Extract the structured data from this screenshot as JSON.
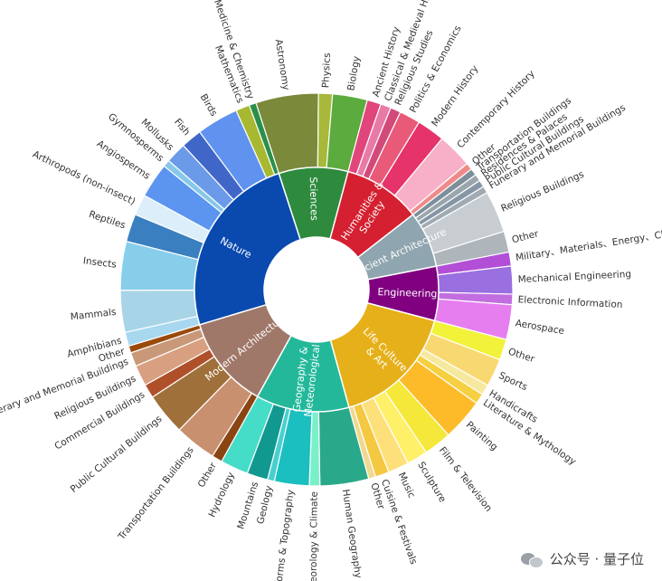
{
  "chart_data": {
    "type": "sunburst",
    "title": "",
    "categories": [
      {
        "name": "Sciences",
        "color": "#2e8b3e",
        "children": [
          {
            "name": "Astronomy",
            "value": 9,
            "color": "#7a8a3a"
          },
          {
            "name": "Physics",
            "value": 2,
            "color": "#a8b83a"
          },
          {
            "name": "Biology",
            "value": 5,
            "color": "#5cab3e"
          }
        ]
      },
      {
        "name": "Humanities & Society",
        "color": "#d42030",
        "children": [
          {
            "name": "Ancient History",
            "value": 2,
            "color": "#e0457b"
          },
          {
            "name": "Classical & Medieval History",
            "value": 1.5,
            "color": "#e87aa6"
          },
          {
            "name": "Religious Studies",
            "value": 1.5,
            "color": "#d24a7a"
          },
          {
            "name": "Politics & Economics",
            "value": 3,
            "color": "#e85a78"
          },
          {
            "name": "Modern History",
            "value": 4,
            "color": "#e6336a"
          },
          {
            "name": "Contemporary History",
            "value": 5,
            "color": "#f7b0c8"
          },
          {
            "name": "Other",
            "value": 1,
            "color": "#f08a8a"
          }
        ]
      },
      {
        "name": "Ancient Architecture",
        "color": "#8fa5b0",
        "children": [
          {
            "name": "Transportation Buildings",
            "value": 1,
            "color": "#7d8f9a"
          },
          {
            "name": "Residences & Palaces",
            "value": 1,
            "color": "#9aa5ad"
          },
          {
            "name": "Public Cultural Buildings",
            "value": 1,
            "color": "#8696a6"
          },
          {
            "name": "Funerary and Memorial Buildings",
            "value": 1,
            "color": "#a0aab3"
          },
          {
            "name": "Religious Buildings",
            "value": 6,
            "color": "#c8cdd2"
          },
          {
            "name": "Other",
            "value": 3,
            "color": "#aeb5bb"
          }
        ]
      },
      {
        "name": "Engineering",
        "color": "#800080",
        "children": [
          {
            "name": "Military、Materials、Energy、Chemical Engineering",
            "value": 2,
            "color": "#b24fd6"
          },
          {
            "name": "Mechanical Engineering",
            "value": 4,
            "color": "#9a6fe0"
          },
          {
            "name": "Electronic Information",
            "value": 1.5,
            "color": "#c26ee0"
          },
          {
            "name": "Aerospace",
            "value": 5,
            "color": "#e67ef0"
          }
        ]
      },
      {
        "name": "Life Culture & Art",
        "color": "#e6b01a",
        "children": [
          {
            "name": "Other",
            "value": 3,
            "color": "#f2f23a"
          },
          {
            "name": "Sports",
            "value": 4,
            "color": "#f8d870"
          },
          {
            "name": "Handicrafts",
            "value": 1.5,
            "color": "#f7e8a0"
          },
          {
            "name": "Literature & Mythology",
            "value": 1.5,
            "color": "#f5d040"
          },
          {
            "name": "Painting",
            "value": 6,
            "color": "#fdbb2a"
          },
          {
            "name": "Film & Television",
            "value": 4,
            "color": "#f5e83a"
          },
          {
            "name": "Sculpture",
            "value": 3,
            "color": "#fff06a"
          },
          {
            "name": "Music",
            "value": 3,
            "color": "#fde07a"
          },
          {
            "name": "Cuisine & Festivals",
            "value": 2,
            "color": "#f5c842"
          },
          {
            "name": "Other",
            "value": 1,
            "color": "#f0d890"
          }
        ]
      },
      {
        "name": "Geography & Meteorological",
        "color": "#23b89a",
        "children": [
          {
            "name": "Human Geography",
            "value": 7,
            "color": "#2aa88a"
          },
          {
            "name": "Meteorology & Climate",
            "value": 1.5,
            "color": "#7af0c8"
          },
          {
            "name": "Landforms & Topography",
            "value": 5,
            "color": "#1bbfbf"
          },
          {
            "name": "Geology",
            "value": 1,
            "color": "#48cfcf"
          },
          {
            "name": "Mountains",
            "value": 3,
            "color": "#12998f"
          },
          {
            "name": "Hydrology",
            "value": 4,
            "color": "#45dcc8"
          }
        ]
      },
      {
        "name": "Modern Architecture",
        "color": "#a0786a",
        "children": [
          {
            "name": "Other",
            "value": 1.5,
            "color": "#8b4512"
          },
          {
            "name": "Transportation Buildings",
            "value": 6,
            "color": "#c99070"
          },
          {
            "name": "Public Cultural Buildings",
            "value": 6,
            "color": "#a0703a"
          },
          {
            "name": "Commercial Buildings",
            "value": 2,
            "color": "#b0502a"
          },
          {
            "name": "Religious Buildings",
            "value": 3,
            "color": "#d8a080"
          },
          {
            "name": "Funerary and Memorial Buildings",
            "value": 2,
            "color": "#c89878"
          },
          {
            "name": "Other",
            "value": 1,
            "color": "#9a4a0a"
          }
        ]
      },
      {
        "name": "Nature",
        "color": "#0a4aaf",
        "children": [
          {
            "name": "Amphibians",
            "value": 2,
            "color": "#a8d8f0"
          },
          {
            "name": "Mammals",
            "value": 6,
            "color": "#a8d4e8"
          },
          {
            "name": "Insects",
            "value": 7,
            "color": "#87ceeb"
          },
          {
            "name": "Reptiles",
            "value": 4,
            "color": "#3a7fbf"
          },
          {
            "name": "Arthropods (non-insect)",
            "value": 3,
            "color": "#dbeefa"
          },
          {
            "name": "Angiosperms",
            "value": 5,
            "color": "#5b95f0"
          },
          {
            "name": "Gymnosperms",
            "value": 1,
            "color": "#87c8e8"
          },
          {
            "name": "Mollusks",
            "value": 3,
            "color": "#6b9be8"
          },
          {
            "name": "Fish",
            "value": 3,
            "color": "#4066c8"
          },
          {
            "name": "Birds",
            "value": 6,
            "color": "#5f93ef"
          },
          {
            "name": "Mathematics",
            "value": 2,
            "color": "#a8b830"
          },
          {
            "name": "Medicine & Chemistry",
            "value": 1,
            "color": "#2a8f4a"
          }
        ]
      }
    ]
  },
  "watermark": "公众号 · 量子位"
}
